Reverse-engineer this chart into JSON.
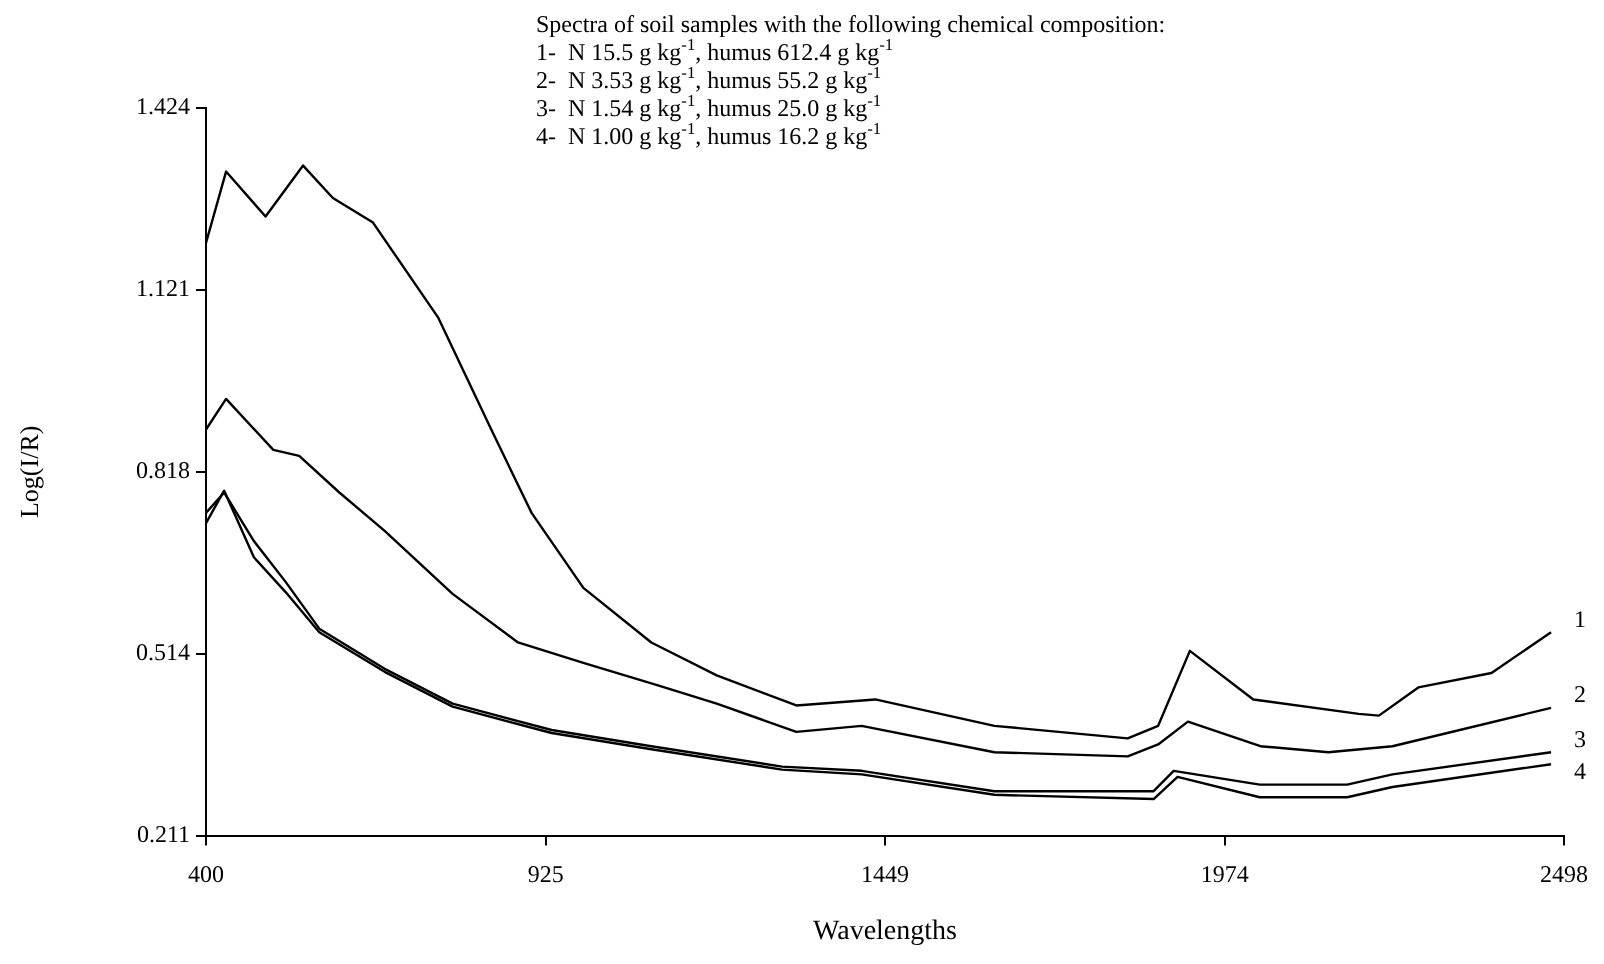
{
  "chart_data": {
    "type": "line",
    "title": "Spectra of soil samples with the following chemical composition:",
    "annotations": [
      "1-  N 15.5 g kg$^{-1}$, humus 612.4 g kg$^{-1}$",
      "2-  N 3.53 g kg$^{-1}$, humus 55.2 g kg$^{-1}$",
      "3-  N 1.54 g kg$^{-1}$, humus 25.0 g kg$^{-1}$",
      "4-  N 1.00 g kg$^{-1}$, humus 16.2 g kg$^{-1}$"
    ],
    "xlabel": "Wavelengths",
    "ylabel": "Log(I/R)",
    "xlim": [
      400,
      2498
    ],
    "xticks": [
      400,
      925,
      1449,
      1974,
      2498
    ],
    "ylim": [
      0.211,
      1.424
    ],
    "yticks": [
      0.211,
      0.514,
      0.818,
      1.121,
      1.424
    ],
    "grid": false,
    "legend": false,
    "marker": "none",
    "line_style": "solid",
    "series": [
      {
        "name": "1",
        "color": "#000000",
        "x": [
          400,
          431,
          492,
          550,
          596,
          658,
          759,
          842,
          903,
          983,
          1088,
          1189,
          1312,
          1434,
          1618,
          1824,
          1871,
          1920,
          2018,
          2181,
          2212,
          2273,
          2386,
          2478
        ],
        "values": [
          1.199,
          1.318,
          1.243,
          1.328,
          1.274,
          1.233,
          1.074,
          0.885,
          0.749,
          0.624,
          0.533,
          0.478,
          0.428,
          0.438,
          0.394,
          0.373,
          0.394,
          0.519,
          0.438,
          0.414,
          0.411,
          0.458,
          0.482,
          0.55
        ]
      },
      {
        "name": "2",
        "color": "#000000",
        "x": [
          400,
          431,
          504,
          544,
          606,
          676,
          781,
          882,
          983,
          1097,
          1189,
          1312,
          1413,
          1618,
          1824,
          1871,
          1917,
          2029,
          2134,
          2233,
          2478
        ],
        "values": [
          0.888,
          0.939,
          0.854,
          0.844,
          0.783,
          0.719,
          0.614,
          0.533,
          0.499,
          0.462,
          0.431,
          0.384,
          0.394,
          0.35,
          0.343,
          0.363,
          0.401,
          0.36,
          0.35,
          0.36,
          0.424
        ]
      },
      {
        "name": "3",
        "color": "#000000",
        "x": [
          400,
          428,
          474,
          523,
          575,
          676,
          781,
          934,
          1088,
          1290,
          1413,
          1618,
          1864,
          1895,
          2028,
          2163,
          2233,
          2478
        ],
        "values": [
          0.749,
          0.783,
          0.702,
          0.634,
          0.556,
          0.489,
          0.431,
          0.387,
          0.36,
          0.326,
          0.319,
          0.285,
          0.285,
          0.319,
          0.296,
          0.296,
          0.313,
          0.35
        ]
      },
      {
        "name": "4",
        "color": "#000000",
        "x": [
          400,
          428,
          474,
          523,
          575,
          676,
          781,
          934,
          1088,
          1290,
          1413,
          1618,
          1864,
          1901,
          2028,
          2163,
          2233,
          2478
        ],
        "values": [
          0.732,
          0.786,
          0.675,
          0.617,
          0.55,
          0.484,
          0.426,
          0.382,
          0.355,
          0.321,
          0.313,
          0.279,
          0.272,
          0.309,
          0.275,
          0.275,
          0.292,
          0.33
        ]
      }
    ]
  }
}
